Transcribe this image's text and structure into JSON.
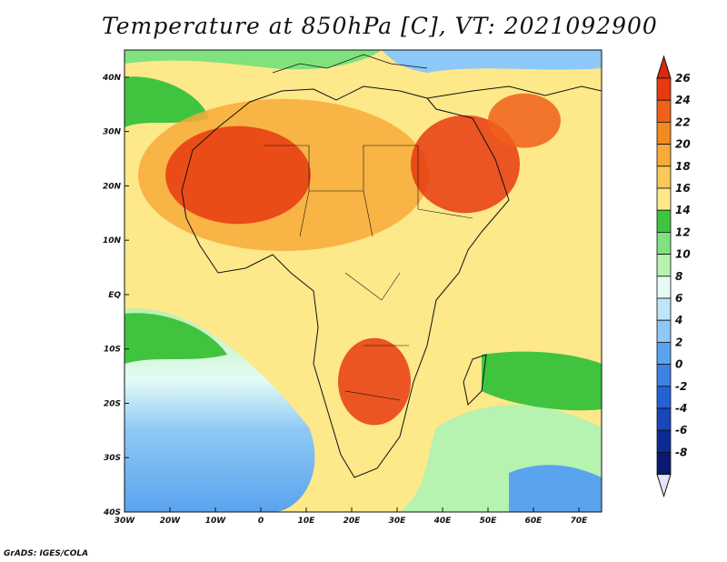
{
  "title": "Temperature at 850hPa [C], VT: 2021092900",
  "credit": "GrADS: IGES/COLA",
  "map": {
    "lon_range": [
      -30,
      75
    ],
    "lat_range": [
      -40,
      45
    ],
    "lat_ticks": [
      {
        "value": 40,
        "label": "40N"
      },
      {
        "value": 30,
        "label": "30N"
      },
      {
        "value": 20,
        "label": "20N"
      },
      {
        "value": 10,
        "label": "10N"
      },
      {
        "value": 0,
        "label": "EQ"
      },
      {
        "value": -10,
        "label": "10S"
      },
      {
        "value": -20,
        "label": "20S"
      },
      {
        "value": -30,
        "label": "30S"
      },
      {
        "value": -40,
        "label": "40S"
      }
    ],
    "lon_ticks": [
      {
        "value": -30,
        "label": "30W"
      },
      {
        "value": -20,
        "label": "20W"
      },
      {
        "value": -10,
        "label": "10W"
      },
      {
        "value": 0,
        "label": "0"
      },
      {
        "value": 10,
        "label": "10E"
      },
      {
        "value": 20,
        "label": "20E"
      },
      {
        "value": 30,
        "label": "30E"
      },
      {
        "value": 40,
        "label": "40E"
      },
      {
        "value": 50,
        "label": "50E"
      },
      {
        "value": 60,
        "label": "60E"
      },
      {
        "value": 70,
        "label": "70E"
      }
    ]
  },
  "colorbar": {
    "levels": [
      {
        "label": "26",
        "color": "#e83a10"
      },
      {
        "label": "24",
        "color": "#f0601a"
      },
      {
        "label": "22",
        "color": "#f48a22"
      },
      {
        "label": "20",
        "color": "#f8aa3a"
      },
      {
        "label": "18",
        "color": "#fbc85a"
      },
      {
        "label": "16",
        "color": "#fde88a"
      },
      {
        "label": "14",
        "color": "#40c440"
      },
      {
        "label": "12",
        "color": "#7fe27f"
      },
      {
        "label": "10",
        "color": "#b6f2b0"
      },
      {
        "label": "8",
        "color": "#e4fbf4"
      },
      {
        "label": "6",
        "color": "#c0e4fa"
      },
      {
        "label": "4",
        "color": "#8ec8f6"
      },
      {
        "label": "2",
        "color": "#5aa4ee"
      },
      {
        "label": "0",
        "color": "#3c82e4"
      },
      {
        "label": "-2",
        "color": "#2462d6"
      },
      {
        "label": "-4",
        "color": "#1846bc"
      },
      {
        "label": "-6",
        "color": "#0c2a96"
      },
      {
        "label": "-8",
        "color": "#0a1a70"
      }
    ],
    "top_cap_color": "#d82a0c",
    "bottom_cap_color": "#e4e4fc"
  },
  "regions": [
    {
      "name": "n-africa-warm",
      "lon": 5,
      "lat": 22,
      "rx": 32,
      "ry": 14,
      "color": "#f8aa3a"
    },
    {
      "name": "sahara-hot",
      "lon": -5,
      "lat": 22,
      "rx": 16,
      "ry": 9,
      "color": "#e83a10"
    },
    {
      "name": "arabia-hot",
      "lon": 45,
      "lat": 24,
      "rx": 12,
      "ry": 9,
      "color": "#e83a10"
    },
    {
      "name": "iran-hot",
      "lon": 58,
      "lat": 32,
      "rx": 8,
      "ry": 5,
      "color": "#f0601a"
    },
    {
      "name": "southern-africa-hot",
      "lon": 25,
      "lat": -16,
      "rx": 8,
      "ry": 8,
      "color": "#e83a10"
    }
  ]
}
